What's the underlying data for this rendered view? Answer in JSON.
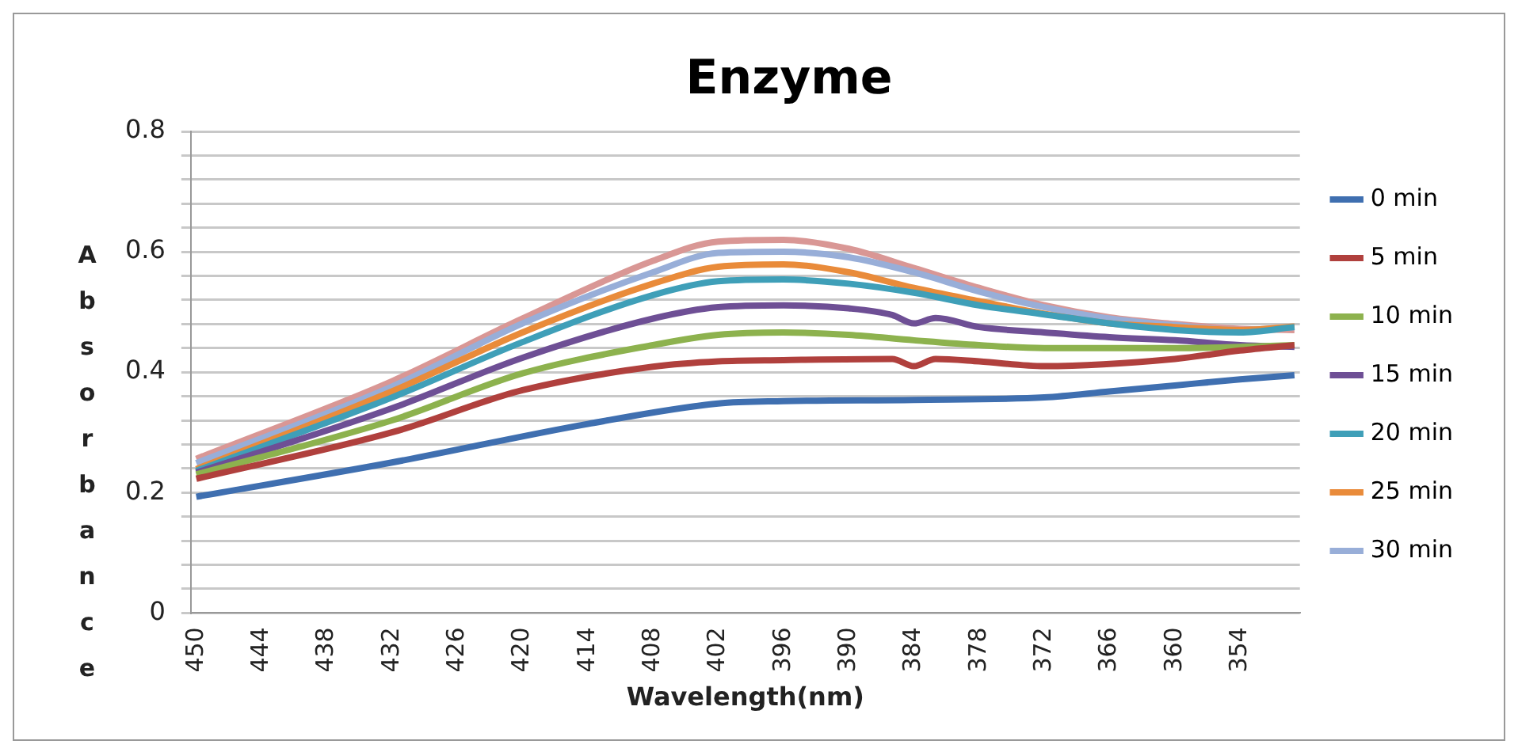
{
  "chart_data": {
    "type": "line",
    "title": "Enzyme",
    "xlabel": "Wavelength(nm)",
    "ylabel": "Absorbance",
    "xlim": [
      450.5,
      348.5
    ],
    "xticks": [
      450,
      444,
      438,
      432,
      426,
      420,
      414,
      408,
      402,
      396,
      390,
      384,
      378,
      372,
      366,
      360,
      354
    ],
    "ylim": [
      0,
      0.8
    ],
    "yticks": [
      0,
      {
        "value": 0.04,
        "label": null
      },
      {
        "value": 0.08,
        "label": null
      },
      {
        "value": 0.12,
        "label": null
      },
      {
        "value": 0.16,
        "label": null
      },
      0.2,
      {
        "value": 0.24,
        "label": null
      },
      {
        "value": 0.28,
        "label": null
      },
      {
        "value": 0.32,
        "label": null
      },
      {
        "value": 0.36,
        "label": null
      },
      0.4,
      {
        "value": 0.44,
        "label": null
      },
      {
        "value": 0.48,
        "label": null
      },
      {
        "value": 0.52,
        "label": null
      },
      {
        "value": 0.56,
        "label": null
      },
      0.6,
      {
        "value": 0.64,
        "label": null
      },
      {
        "value": 0.68,
        "label": null
      },
      {
        "value": 0.72,
        "label": null
      },
      {
        "value": 0.76,
        "label": null
      },
      0.8
    ],
    "grid": "y",
    "legend": "right",
    "marker": "none",
    "line_style": "solid",
    "series": [
      {
        "name": "0 min",
        "color": "#3f6fb0",
        "x": [
          450,
          432,
          414,
          402,
          396,
          384,
          372,
          366,
          360,
          354,
          349
        ],
        "values": [
          0.193,
          0.25,
          0.314,
          0.348,
          0.352,
          0.354,
          0.358,
          0.368,
          0.378,
          0.388,
          0.395
        ]
      },
      {
        "name": "5 min",
        "color": "#b0403d",
        "x": [
          450,
          432,
          420,
          408,
          402,
          396,
          386,
          384,
          382,
          378,
          372,
          360,
          354,
          349
        ],
        "values": [
          0.223,
          0.3,
          0.37,
          0.409,
          0.418,
          0.42,
          0.422,
          0.41,
          0.422,
          0.418,
          0.41,
          0.422,
          0.436,
          0.445
        ]
      },
      {
        "name": "10 min",
        "color": "#8db24e",
        "x": [
          450,
          432,
          420,
          408,
          402,
          396,
          390,
          384,
          378,
          372,
          360,
          354,
          349
        ],
        "values": [
          0.23,
          0.32,
          0.398,
          0.445,
          0.462,
          0.466,
          0.462,
          0.453,
          0.445,
          0.44,
          0.44,
          0.442,
          0.445
        ]
      },
      {
        "name": "15 min",
        "color": "#6e4f95",
        "x": [
          450,
          432,
          420,
          408,
          402,
          396,
          390,
          386,
          384,
          382,
          378,
          372,
          366,
          360,
          354,
          349
        ],
        "values": [
          0.233,
          0.34,
          0.424,
          0.489,
          0.508,
          0.511,
          0.506,
          0.495,
          0.481,
          0.49,
          0.475,
          0.466,
          0.458,
          0.453,
          0.445,
          0.442
        ]
      },
      {
        "name": "20 min",
        "color": "#3f9fb8",
        "x": [
          450,
          432,
          420,
          408,
          402,
          396,
          390,
          384,
          378,
          372,
          366,
          360,
          354,
          349
        ],
        "values": [
          0.236,
          0.358,
          0.45,
          0.528,
          0.551,
          0.554,
          0.547,
          0.532,
          0.511,
          0.496,
          0.481,
          0.47,
          0.466,
          0.475
        ]
      },
      {
        "name": "25 min",
        "color": "#e98b3a",
        "x": [
          450,
          432,
          420,
          408,
          402,
          396,
          390,
          384,
          378,
          372,
          366,
          360,
          354,
          349
        ],
        "values": [
          0.239,
          0.368,
          0.466,
          0.547,
          0.575,
          0.579,
          0.566,
          0.54,
          0.518,
          0.497,
          0.481,
          0.475,
          0.47,
          0.476
        ]
      },
      {
        "name": "30 min",
        "color": "#98aed8",
        "x": [
          450,
          432,
          420,
          408,
          402,
          396,
          390,
          384,
          378,
          372,
          366,
          360,
          354,
          349
        ],
        "values": [
          0.249,
          0.376,
          0.481,
          0.566,
          0.598,
          0.6,
          0.591,
          0.566,
          0.534,
          0.508,
          0.489,
          0.478,
          0.47,
          0.475
        ]
      },
      {
        "color": "#d99795",
        "x": [
          450,
          432,
          420,
          408,
          402,
          396,
          390,
          384,
          378,
          372,
          366,
          360,
          354,
          349
        ],
        "values": [
          0.256,
          0.385,
          0.489,
          0.585,
          0.617,
          0.62,
          0.605,
          0.573,
          0.54,
          0.511,
          0.491,
          0.48,
          0.472,
          0.47
        ]
      }
    ]
  }
}
